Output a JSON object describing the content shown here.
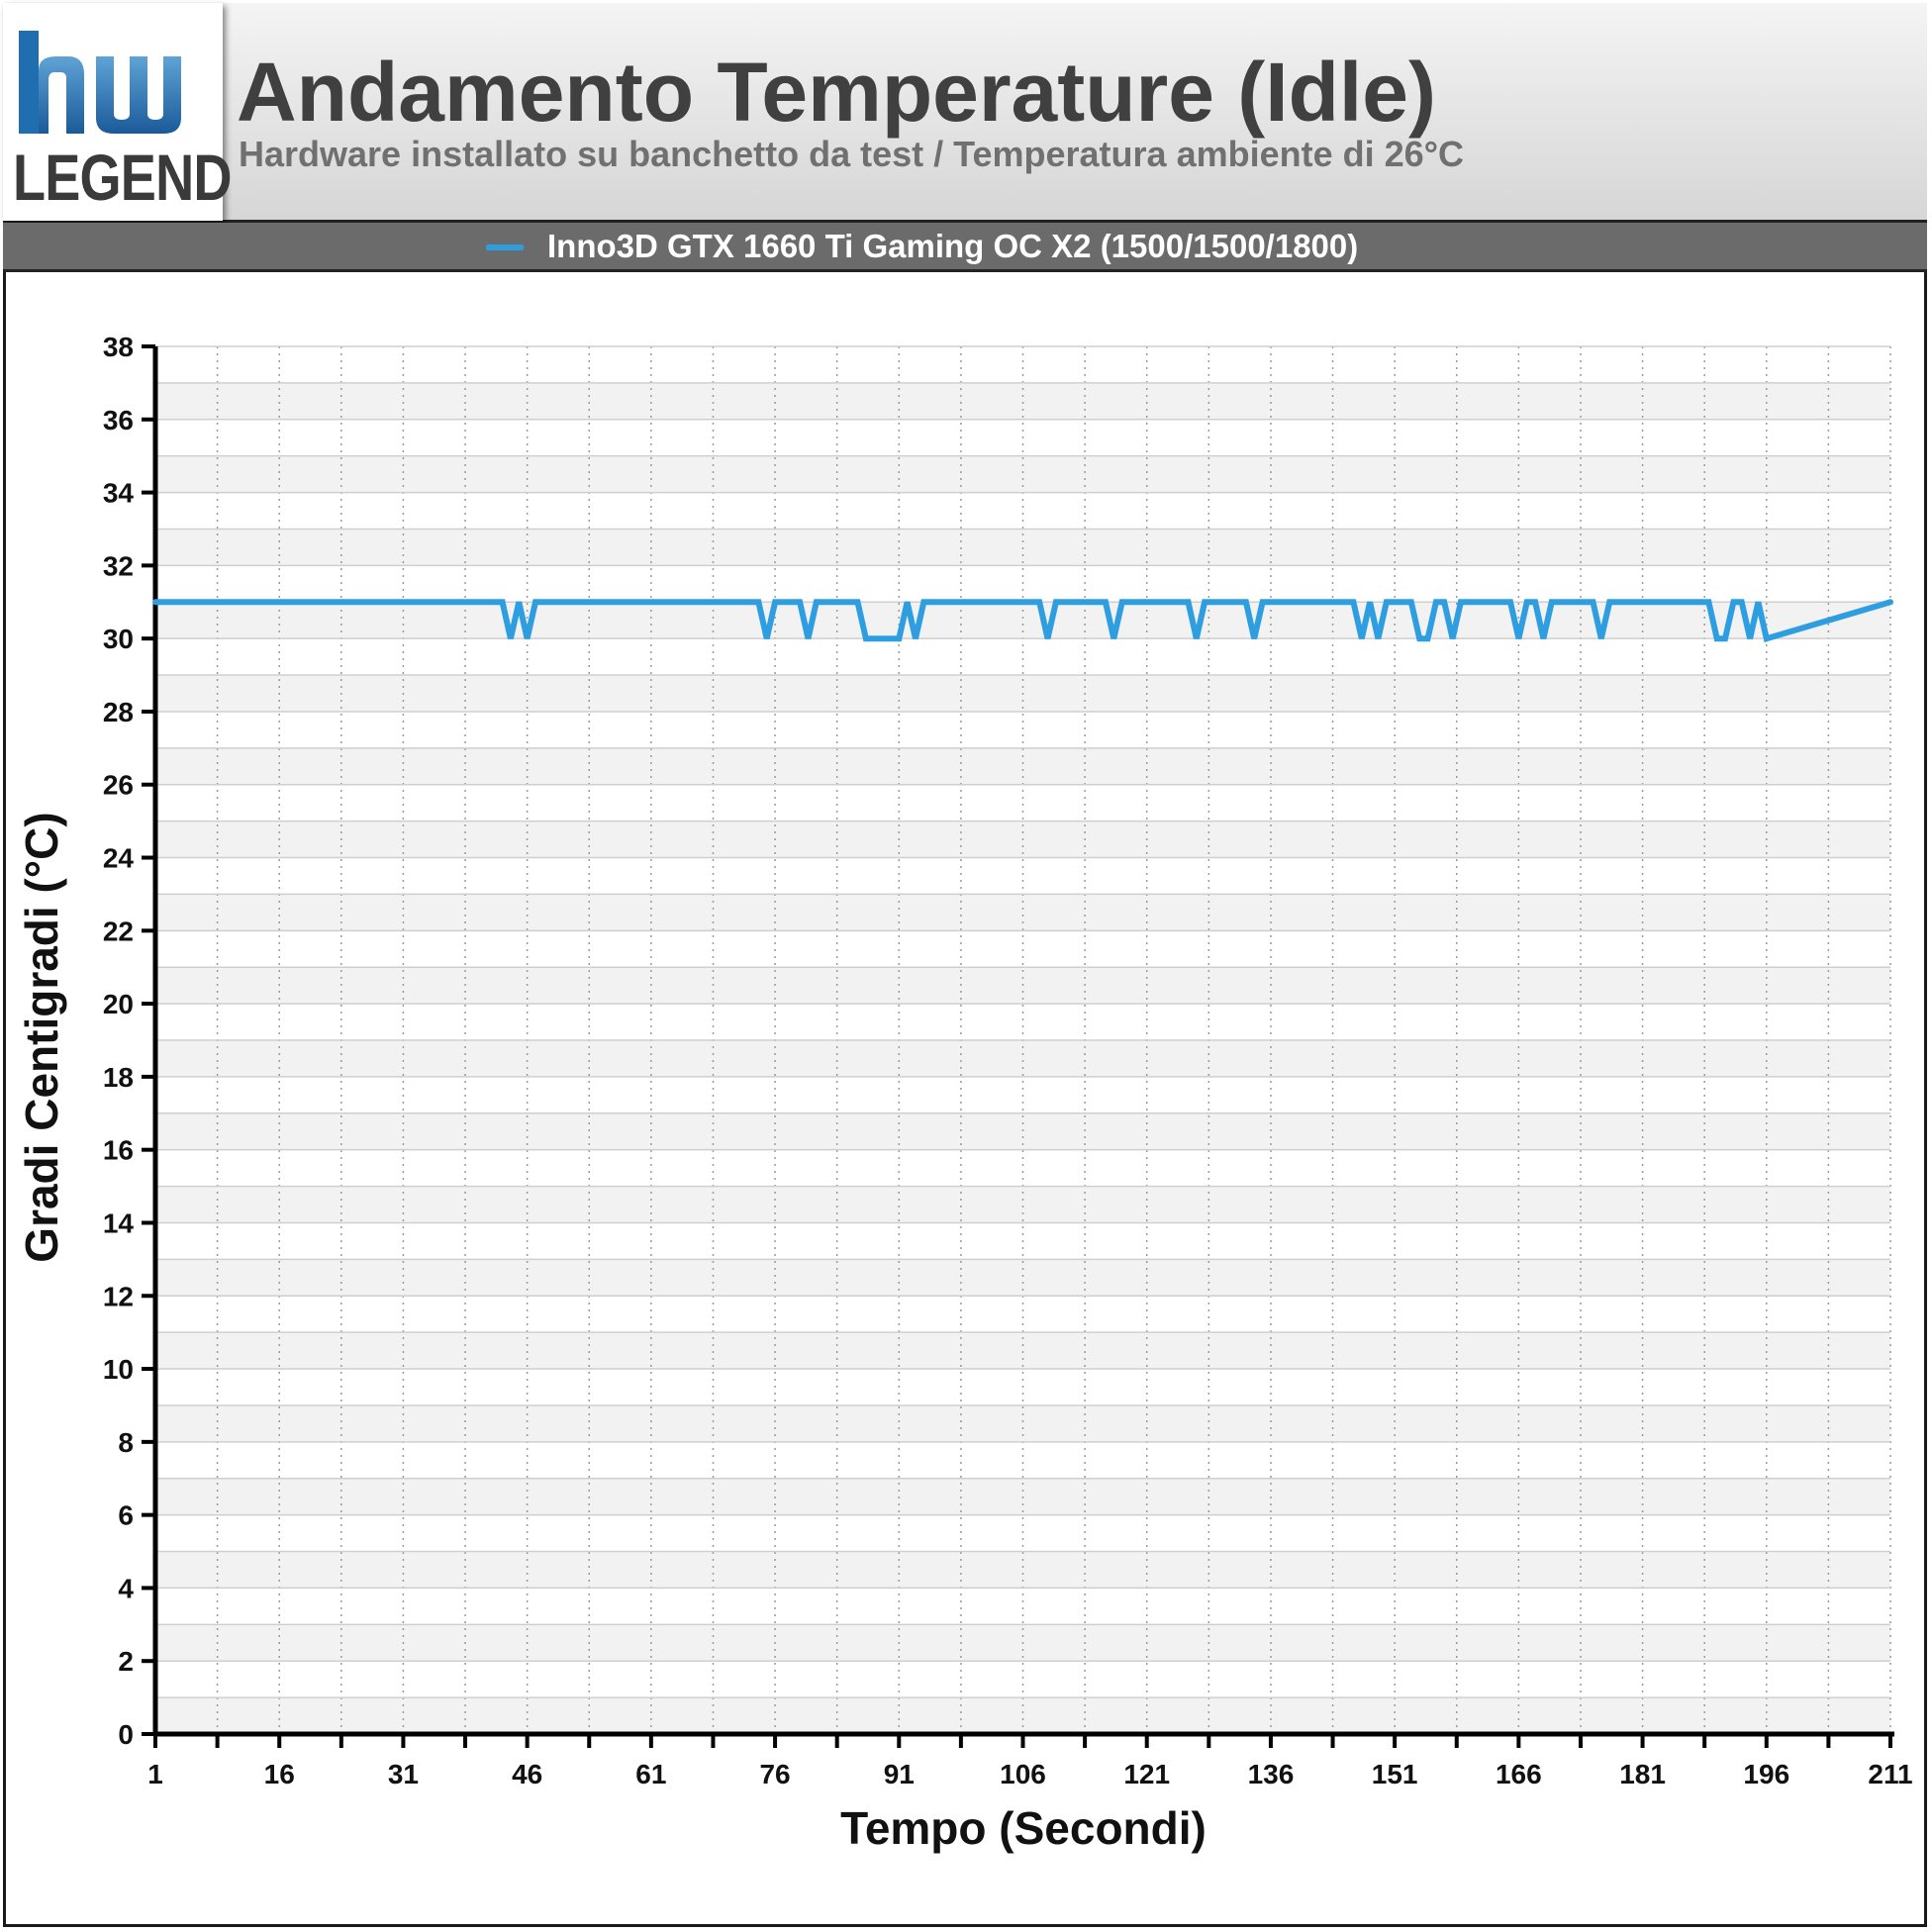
{
  "header": {
    "logo_text": "LEGEND",
    "title": "Andamento Temperature (Idle)",
    "subtitle": "Hardware installato su banchetto da test / Temperatura ambiente di 26°C"
  },
  "legend": {
    "series_label": "Inno3D GTX 1660 Ti Gaming OC X2 (1500/1500/1800)"
  },
  "colors": {
    "series": "#2f9ee0",
    "band": "#f2f2f2",
    "grid": "#cfcfcf"
  },
  "chart_data": {
    "type": "line",
    "title": "Andamento Temperature (Idle)",
    "subtitle": "Hardware installato su banchetto da test / Temperatura ambiente di 26°C",
    "xlabel": "Tempo (Secondi)",
    "ylabel": "Gradi Centigradi (°C)",
    "xlim": [
      1,
      211
    ],
    "ylim": [
      0,
      38
    ],
    "y_ticks": [
      0,
      2,
      4,
      6,
      8,
      10,
      12,
      14,
      16,
      18,
      20,
      22,
      24,
      26,
      28,
      30,
      32,
      34,
      36,
      38
    ],
    "x_tick_labels": [
      1,
      16,
      31,
      46,
      61,
      76,
      91,
      106,
      121,
      136,
      151,
      166,
      181,
      196,
      211
    ],
    "grid": true,
    "legend_position": "top",
    "series": [
      {
        "name": "Inno3D GTX 1660 Ti Gaming OC X2 (1500/1500/1800)",
        "x": [
          1,
          43,
          44,
          45,
          46,
          47,
          74,
          75,
          76,
          79,
          80,
          81,
          86,
          87,
          88,
          91,
          92,
          93,
          94,
          95,
          96,
          108,
          109,
          110,
          116,
          117,
          118,
          126,
          127,
          128,
          133,
          134,
          135,
          146,
          147,
          148,
          149,
          150,
          153,
          154,
          155,
          156,
          157,
          158,
          159,
          165,
          166,
          167,
          168,
          169,
          170,
          175,
          176,
          177,
          189,
          190,
          191,
          192,
          193,
          194,
          195,
          196,
          211
        ],
        "y": [
          31,
          31,
          30,
          31,
          30,
          31,
          31,
          30,
          31,
          31,
          30,
          31,
          31,
          30,
          30,
          30,
          31,
          30,
          31,
          31,
          31,
          31,
          30,
          31,
          31,
          30,
          31,
          31,
          30,
          31,
          31,
          30,
          31,
          31,
          30,
          31,
          30,
          31,
          31,
          30,
          30,
          31,
          31,
          30,
          31,
          31,
          30,
          31,
          31,
          30,
          31,
          31,
          30,
          31,
          31,
          30,
          30,
          31,
          31,
          30,
          31,
          30,
          31
        ]
      }
    ]
  }
}
